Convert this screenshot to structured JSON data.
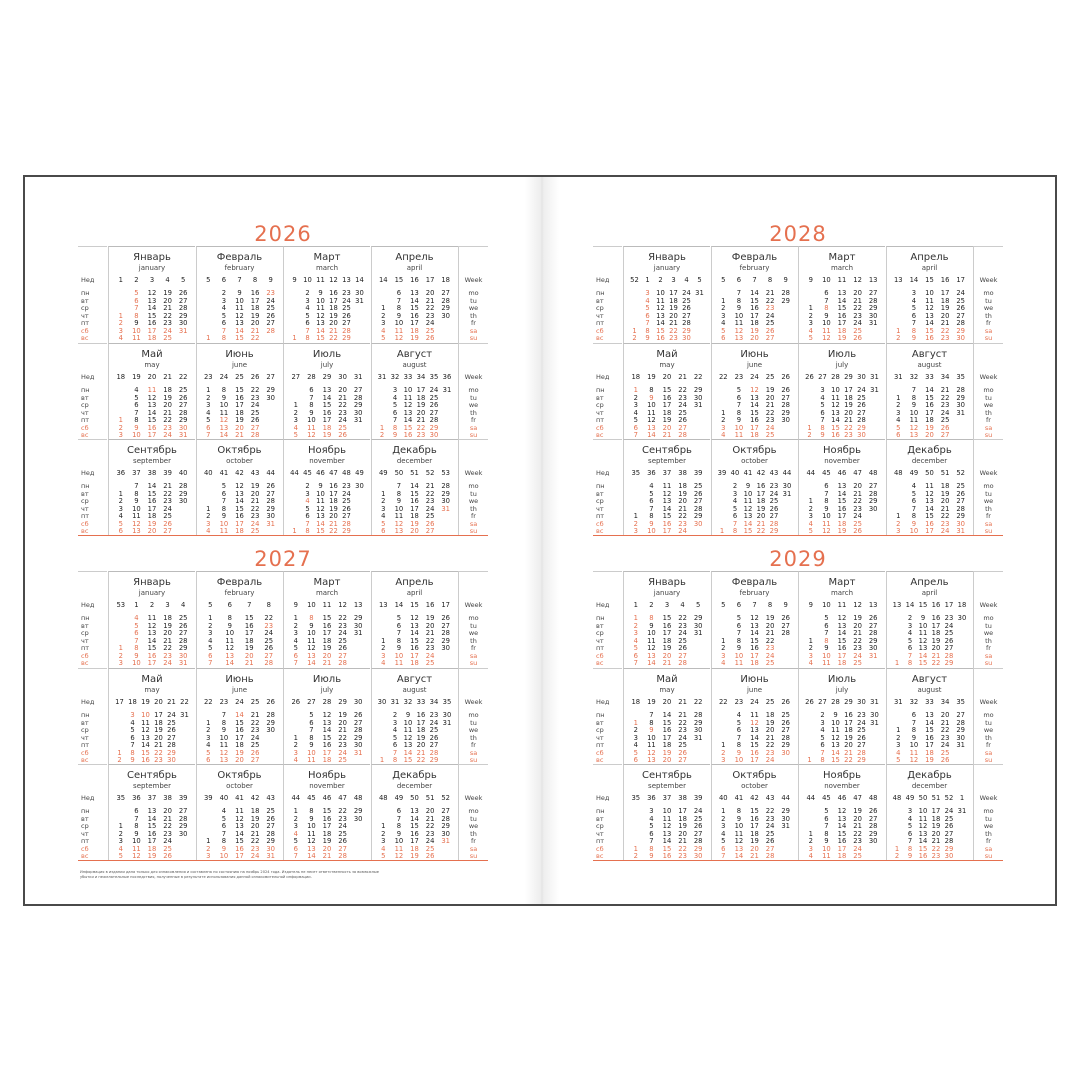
{
  "years": [
    {
      "year": "2026",
      "holidays": [
        "01-01",
        "01-02",
        "01-03",
        "01-04",
        "01-05",
        "01-06",
        "01-07",
        "01-08",
        "02-23",
        "03-08",
        "05-01",
        "05-09",
        "05-11",
        "06-12",
        "11-04",
        "12-31"
      ]
    },
    {
      "year": "2027",
      "holidays": [
        "01-01",
        "01-02",
        "01-03",
        "01-04",
        "01-05",
        "01-06",
        "01-07",
        "01-08",
        "02-23",
        "03-08",
        "05-01",
        "05-03",
        "05-09",
        "05-10",
        "06-12",
        "06-14",
        "11-04",
        "12-31"
      ]
    },
    {
      "year": "2028",
      "holidays": [
        "01-01",
        "01-02",
        "01-03",
        "01-04",
        "01-05",
        "01-06",
        "01-07",
        "01-08",
        "02-23",
        "03-08",
        "05-01",
        "05-09",
        "06-12",
        "11-04"
      ]
    },
    {
      "year": "2029",
      "holidays": [
        "01-01",
        "01-02",
        "01-03",
        "01-04",
        "01-05",
        "01-06",
        "01-07",
        "01-08",
        "02-23",
        "03-08",
        "05-01",
        "05-09",
        "06-12",
        "11-04"
      ]
    }
  ],
  "months": [
    {
      "ru": "Январь",
      "en": "january"
    },
    {
      "ru": "Февраль",
      "en": "february"
    },
    {
      "ru": "Март",
      "en": "march"
    },
    {
      "ru": "Апрель",
      "en": "april"
    },
    {
      "ru": "Май",
      "en": "may"
    },
    {
      "ru": "Июнь",
      "en": "june"
    },
    {
      "ru": "Июль",
      "en": "july"
    },
    {
      "ru": "Август",
      "en": "august"
    },
    {
      "ru": "Сентябрь",
      "en": "september"
    },
    {
      "ru": "Октябрь",
      "en": "october"
    },
    {
      "ru": "Ноябрь",
      "en": "november"
    },
    {
      "ru": "Декабрь",
      "en": "december"
    }
  ],
  "week_label_ru": "Нед",
  "week_label_en": "Week",
  "weekdays_ru": [
    "пн",
    "вт",
    "ср",
    "чт",
    "пт",
    "сб",
    "вс"
  ],
  "weekdays_en": [
    "mo",
    "tu",
    "we",
    "th",
    "fr",
    "sa",
    "su"
  ],
  "colors": {
    "accent": "#e5704f",
    "border": "#4a4a4a"
  },
  "footnote": "Информация в издании дана только для ознакомления и составлена по состоянию на ноябрь 2024 года. Издатель не несет ответственность за возможные убытки и нежелательные последствия, полученные в результате использования данной ознакомительной информации."
}
